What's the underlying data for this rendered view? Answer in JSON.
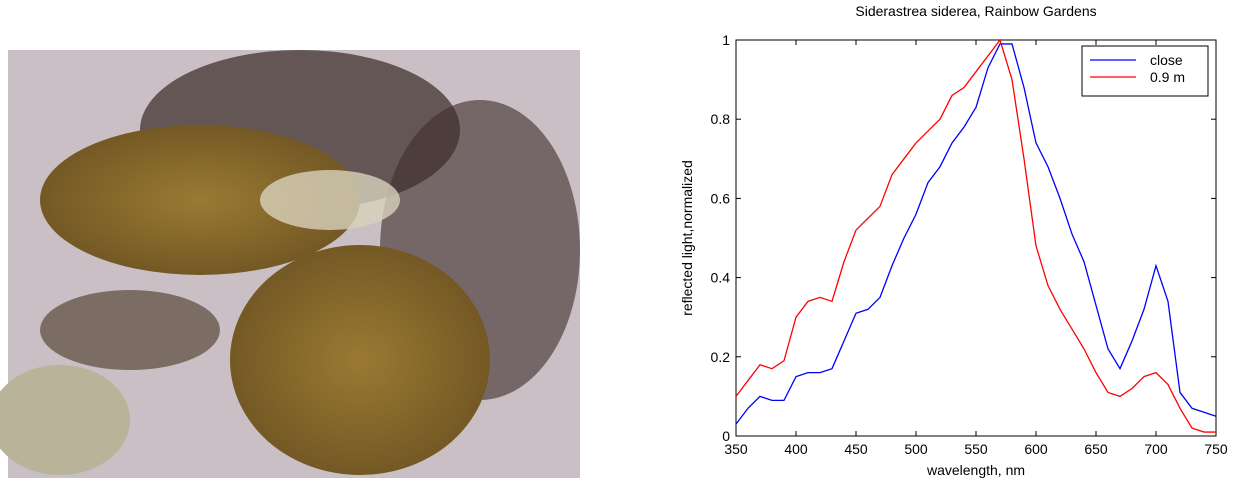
{
  "chart_data": {
    "type": "line",
    "title": "Siderastrea siderea, Rainbow Gardens",
    "xlabel": "wavelength, nm",
    "ylabel": "reflected light,normalized",
    "x": [
      350,
      360,
      370,
      380,
      390,
      400,
      410,
      420,
      430,
      440,
      450,
      460,
      470,
      480,
      490,
      500,
      510,
      520,
      530,
      540,
      550,
      560,
      570,
      580,
      590,
      600,
      610,
      620,
      630,
      640,
      650,
      660,
      670,
      680,
      690,
      700,
      710,
      720,
      730,
      740,
      750
    ],
    "series": [
      {
        "name": "close",
        "color": "#0000ff",
        "values": [
          0.03,
          0.07,
          0.1,
          0.09,
          0.09,
          0.15,
          0.16,
          0.16,
          0.17,
          0.24,
          0.31,
          0.32,
          0.35,
          0.43,
          0.5,
          0.56,
          0.64,
          0.68,
          0.74,
          0.78,
          0.83,
          0.93,
          0.99,
          0.99,
          0.88,
          0.74,
          0.68,
          0.6,
          0.51,
          0.44,
          0.33,
          0.22,
          0.17,
          0.24,
          0.32,
          0.43,
          0.34,
          0.11,
          0.07,
          0.06,
          0.05
        ]
      },
      {
        "name": "0.9 m",
        "color": "#ff0000",
        "values": [
          0.1,
          0.14,
          0.18,
          0.17,
          0.19,
          0.3,
          0.34,
          0.35,
          0.34,
          0.44,
          0.52,
          0.55,
          0.58,
          0.66,
          0.7,
          0.74,
          0.77,
          0.8,
          0.86,
          0.88,
          0.92,
          0.96,
          1.0,
          0.9,
          0.7,
          0.48,
          0.38,
          0.32,
          0.27,
          0.22,
          0.16,
          0.11,
          0.1,
          0.12,
          0.15,
          0.16,
          0.13,
          0.07,
          0.02,
          0.01,
          0.01
        ]
      }
    ],
    "xlim": [
      350,
      750
    ],
    "xticks": [
      350,
      400,
      450,
      500,
      550,
      600,
      650,
      700,
      750
    ],
    "ylim": [
      0,
      1
    ],
    "yticks": [
      0,
      0.2,
      0.4,
      0.6,
      0.8,
      1
    ],
    "grid": false,
    "legend": "upper right"
  }
}
